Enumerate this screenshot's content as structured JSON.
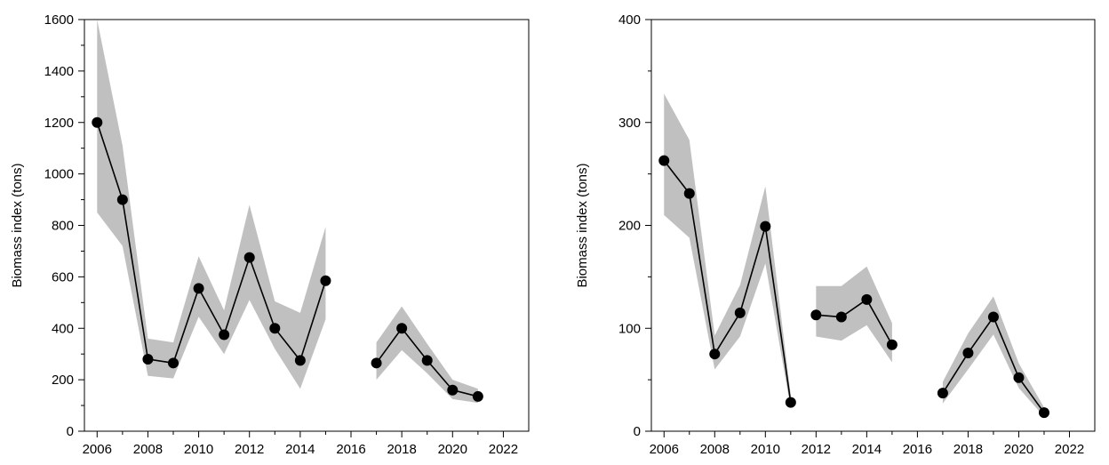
{
  "chart_data": [
    {
      "type": "line",
      "title": "",
      "xlabel": "",
      "ylabel": "Biomass index (tons)",
      "xlim": [
        2005.5,
        2023
      ],
      "ylim": [
        0,
        1600
      ],
      "xticks": [
        2006,
        2008,
        2010,
        2012,
        2014,
        2016,
        2018,
        2020,
        2022
      ],
      "yticks": [
        0,
        200,
        400,
        600,
        800,
        1000,
        1200,
        1400,
        1600
      ],
      "grid": false,
      "colors": {
        "line": "#000000",
        "band": "#c0c0c0",
        "marker": "#000000"
      },
      "series": [
        {
          "x": [
            2006,
            2007,
            2008,
            2009,
            2010,
            2011,
            2012,
            2013,
            2014,
            2015,
            null,
            2017,
            2018,
            2019,
            2020,
            2021
          ],
          "values": [
            1200,
            900,
            280,
            265,
            555,
            375,
            675,
            400,
            275,
            585,
            null,
            265,
            400,
            275,
            160,
            135
          ],
          "lower": [
            850,
            720,
            215,
            205,
            445,
            300,
            510,
            320,
            165,
            435,
            null,
            200,
            315,
            225,
            125,
            110
          ],
          "upper": [
            1600,
            1110,
            360,
            345,
            680,
            470,
            880,
            505,
            460,
            795,
            null,
            345,
            485,
            340,
            200,
            165
          ]
        }
      ]
    },
    {
      "type": "line",
      "title": "",
      "xlabel": "",
      "ylabel": "Biomass index (tons)",
      "xlim": [
        2005.5,
        2023
      ],
      "ylim": [
        0,
        400
      ],
      "xticks": [
        2006,
        2008,
        2010,
        2012,
        2014,
        2016,
        2018,
        2020,
        2022
      ],
      "yticks": [
        0,
        100,
        200,
        300,
        400
      ],
      "grid": false,
      "colors": {
        "line": "#000000",
        "band": "#c0c0c0",
        "marker": "#000000"
      },
      "series": [
        {
          "x": [
            2006,
            2007,
            2008,
            2009,
            2010,
            2011,
            null,
            2012,
            2013,
            2014,
            2015,
            null,
            2017,
            2018,
            2019,
            2020,
            2021
          ],
          "values": [
            263,
            231,
            75,
            115,
            199,
            28,
            null,
            113,
            111,
            128,
            84,
            null,
            37,
            76,
            111,
            52,
            18
          ],
          "lower": [
            210,
            188,
            60,
            92,
            163,
            22,
            null,
            92,
            88,
            103,
            67,
            null,
            27,
            60,
            94,
            42,
            14
          ],
          "upper": [
            328,
            283,
            93,
            142,
            238,
            35,
            null,
            141,
            141,
            160,
            105,
            null,
            48,
            95,
            131,
            66,
            23
          ]
        }
      ]
    }
  ]
}
